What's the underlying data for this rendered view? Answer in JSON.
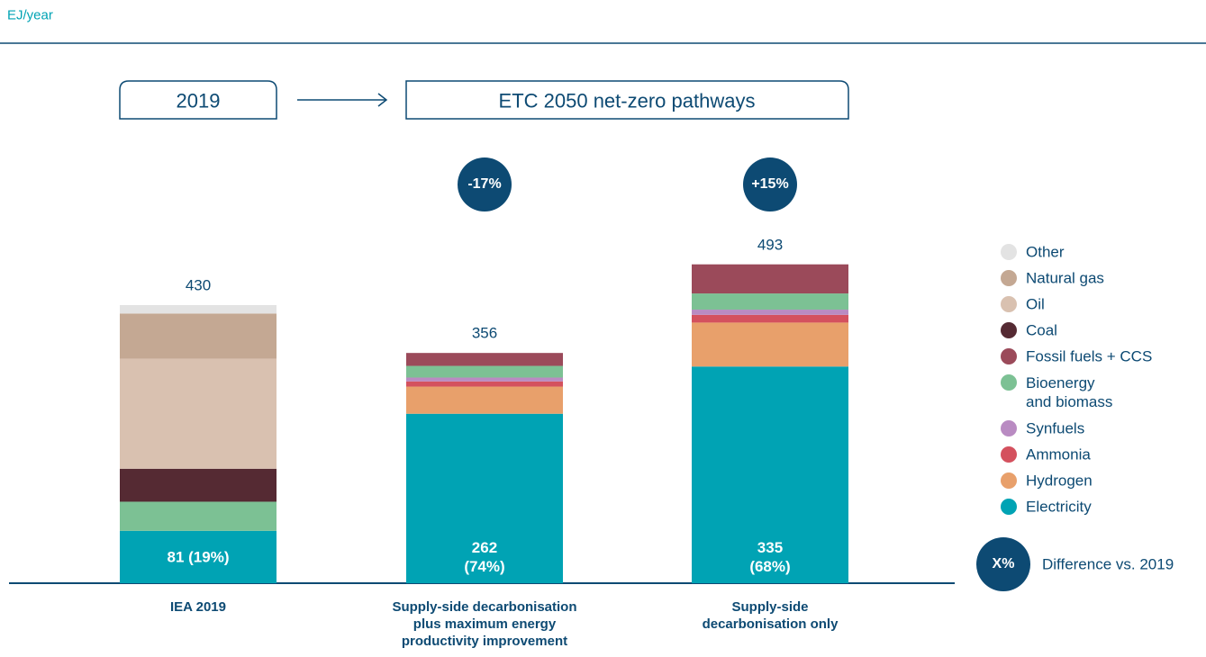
{
  "chart_data": {
    "type": "stacked_bar",
    "unit_label": "EJ/year",
    "period_labels": [
      "2019",
      "ETC 2050 net-zero pathways"
    ],
    "categories": [
      "IEA 2019",
      "Supply-side decarbonisation\nplus maximum energy\nproductivity improvement",
      "Supply-side\ndecarbonisation only"
    ],
    "totals": [
      430,
      356,
      493
    ],
    "differences": [
      null,
      "-17%",
      "+15%"
    ],
    "series": [
      {
        "name": "Electricity",
        "color": "#00a3b4",
        "values": [
          81,
          262,
          335
        ],
        "value_labels": [
          "81 (19%)",
          "262\n(74%)",
          "335\n(68%)"
        ]
      },
      {
        "name": "Hydrogen",
        "color": "#e8a06b",
        "values": [
          0,
          42,
          68
        ]
      },
      {
        "name": "Ammonia",
        "color": "#d4515e",
        "values": [
          0,
          8,
          12
        ]
      },
      {
        "name": "Synfuels",
        "color": "#b98bc2",
        "values": [
          0,
          6,
          8
        ]
      },
      {
        "name": "Bioenergy\nand biomass",
        "color": "#7cc194",
        "values": [
          45,
          18,
          25
        ]
      },
      {
        "name": "Fossil fuels + CCS",
        "color": "#9b4a5a",
        "values": [
          0,
          20,
          45
        ]
      },
      {
        "name": "Coal",
        "color": "#552a33",
        "values": [
          51,
          0,
          0
        ]
      },
      {
        "name": "Oil",
        "color": "#d9c1b0",
        "values": [
          170,
          0,
          0
        ]
      },
      {
        "name": "Natural gas",
        "color": "#c4a893",
        "values": [
          70,
          0,
          0
        ]
      },
      {
        "name": "Other",
        "color": "#e3e3e3",
        "values": [
          13,
          0,
          0
        ]
      }
    ],
    "difference_legend": {
      "symbol": "X%",
      "label": "Difference vs. 2019"
    }
  }
}
